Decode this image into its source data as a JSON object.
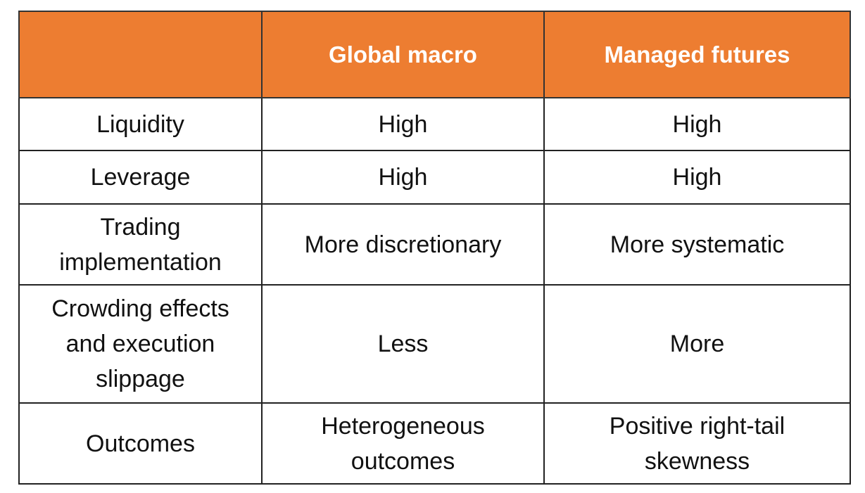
{
  "table": {
    "header": [
      "Global macro",
      "Managed futures"
    ],
    "rows": [
      [
        "Liquidity",
        "High",
        "High"
      ],
      [
        "Leverage",
        "High",
        "High"
      ],
      [
        "Trading implementation",
        "More discretionary",
        "More systematic"
      ],
      [
        "Crowding effects and execution slippage",
        "Less",
        "More"
      ],
      [
        "Outcomes",
        "Heterogeneous outcomes",
        "Positive right-tail skewness"
      ]
    ]
  }
}
